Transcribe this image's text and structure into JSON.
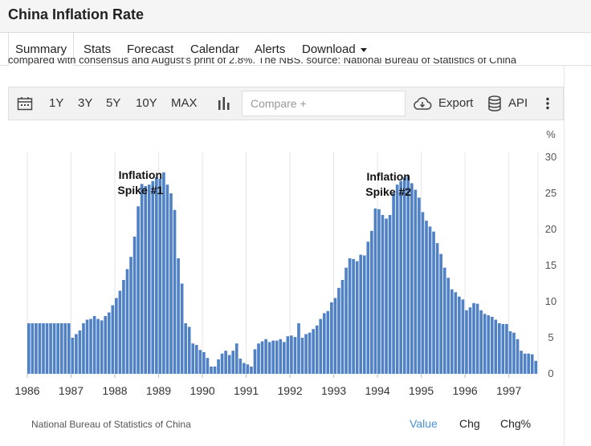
{
  "page": {
    "title": "China Inflation Rate"
  },
  "tabs": [
    {
      "label": "Summary",
      "active": true
    },
    {
      "label": "Stats"
    },
    {
      "label": "Forecast"
    },
    {
      "label": "Calendar"
    },
    {
      "label": "Alerts"
    },
    {
      "label": "Download"
    }
  ],
  "cut_text": "compared with consensus and August's print of 2.8%. The NBS. source: National Bureau of Statistics of China",
  "toolbar": {
    "ranges": [
      "1Y",
      "3Y",
      "5Y",
      "10Y",
      "MAX"
    ],
    "compare_placeholder": "Compare +",
    "export_label": "Export",
    "api_label": "API"
  },
  "footer": {
    "source": "National Bureau of Statistics of China",
    "value_tab": "Value",
    "chg_tab": "Chg",
    "chgpct_tab": "Chg%"
  },
  "colors": {
    "bar": "#4f81c4",
    "accent": "#4a90d9"
  },
  "chart_data": {
    "type": "bar",
    "title": "",
    "xlabel": "",
    "ylabel": "%",
    "y_axis_side": "right",
    "ylim": [
      0,
      30
    ],
    "yticks": [
      0,
      5,
      10,
      15,
      20,
      25,
      30
    ],
    "x_start": "1986-01",
    "x_tick_labels": [
      "1986",
      "1987",
      "1988",
      "1989",
      "1990",
      "1991",
      "1992",
      "1993",
      "1994",
      "1995",
      "1996",
      "1997"
    ],
    "grid": "vertical",
    "annotations": [
      {
        "line1": "Inflation",
        "line2": "Spike #1",
        "x": "1988-08"
      },
      {
        "line1": "Inflation",
        "line2": "Spike #2",
        "x": "1994-04"
      }
    ],
    "values": [
      7,
      7,
      7,
      7,
      7,
      7,
      7,
      7,
      7,
      7,
      7,
      7,
      5,
      5.5,
      6,
      7,
      7.5,
      7.6,
      8,
      7.6,
      7.4,
      8,
      8.5,
      9.5,
      10.5,
      11.5,
      13,
      14.5,
      16.2,
      19,
      23.2,
      26.3,
      26,
      26.2,
      26.7,
      27.2,
      27,
      27.9,
      26.2,
      25,
      22.7,
      16,
      12.5,
      7,
      6.5,
      4.2,
      4,
      3.3,
      3,
      2.2,
      1,
      1,
      2,
      2.8,
      3.2,
      2.6,
      3.2,
      4.2,
      2.1,
      1.5,
      1.3,
      1,
      3.4,
      4.2,
      4.5,
      4.8,
      4.4,
      4.6,
      4.6,
      4.8,
      4.4,
      5.2,
      5.3,
      5.1,
      7,
      5,
      5.5,
      5.7,
      6.2,
      6.7,
      7.6,
      8.4,
      8.7,
      9.9,
      10.5,
      11.9,
      13,
      14.7,
      16,
      15.9,
      15.6,
      16.5,
      16.4,
      18.3,
      19.8,
      22.9,
      22.8,
      22,
      21.5,
      22,
      25,
      26.2,
      26.7,
      27.2,
      27.4,
      26.4,
      25.5,
      24.4,
      22.4,
      21.2,
      20.4,
      19.7,
      18.1,
      16.6,
      14.7,
      13.3,
      11.7,
      11.3,
      10.7,
      10.3,
      8.8,
      9.2,
      9.8,
      9.7,
      8.8,
      8.3,
      8.1,
      7.9,
      7.5,
      7,
      6.9,
      6.9,
      5.9,
      5.7,
      4.8,
      3.2,
      2.8,
      2.8,
      2.7,
      1.8
    ]
  }
}
